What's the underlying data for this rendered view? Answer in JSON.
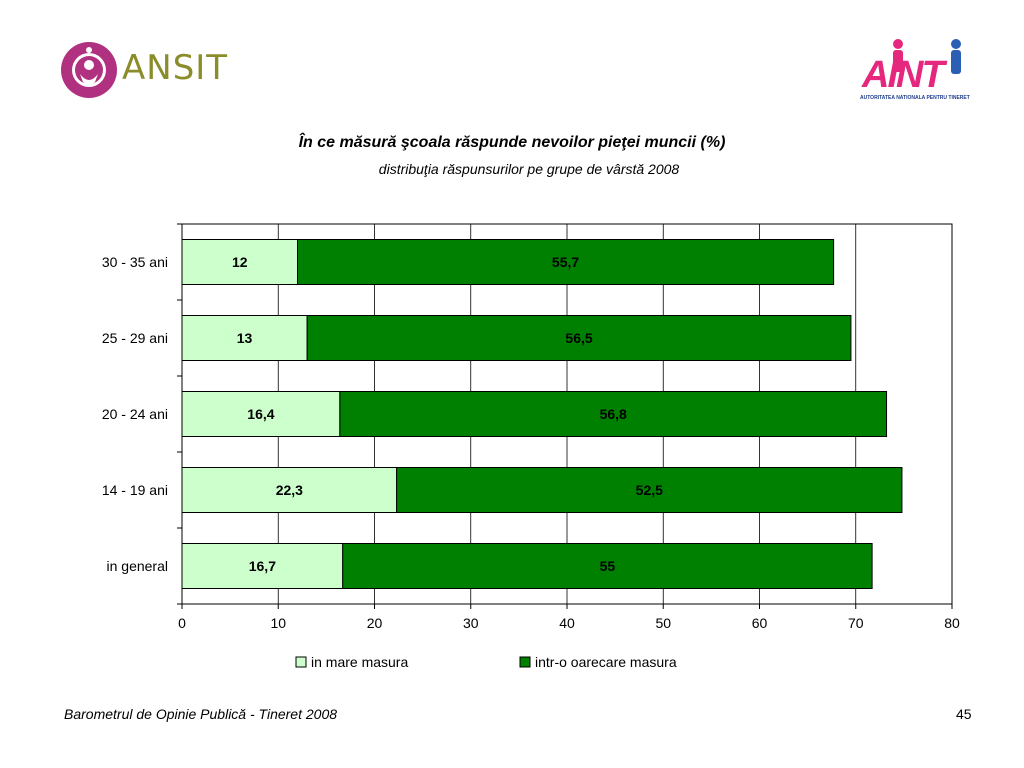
{
  "logos": {
    "left_text": "ANSIT",
    "right_text": "AINT",
    "right_subtext": "AUTORITATEA NATIONALA PENTRU TINERET"
  },
  "colors": {
    "series1": "#ccffcc",
    "series2": "#008000",
    "logo_magenta": "#b0317f",
    "logo_olive": "#8a8d2a"
  },
  "chart_data": {
    "type": "bar",
    "orientation": "horizontal",
    "stacked": true,
    "title": "În ce măsură şcoala răspunde nevoilor pieţei muncii (%)",
    "subtitle": "distribuţia răspunsurilor pe grupe de vârstă 2008",
    "categories": [
      "30 - 35 ani",
      "25 - 29 ani",
      "20 - 24 ani",
      "14 - 19 ani",
      "in general"
    ],
    "series": [
      {
        "name": "in mare masura",
        "values": [
          12,
          13,
          16.4,
          22.3,
          16.7
        ],
        "labels": [
          "12",
          "13",
          "16,4",
          "22,3",
          "16,7"
        ]
      },
      {
        "name": "intr-o oarecare masura",
        "values": [
          55.7,
          56.5,
          56.8,
          52.5,
          55
        ],
        "labels": [
          "55,7",
          "56,5",
          "56,8",
          "52,5",
          "55"
        ]
      }
    ],
    "xlim": [
      0,
      80
    ],
    "xticks": [
      0,
      10,
      20,
      30,
      40,
      50,
      60,
      70,
      80
    ],
    "grid": true,
    "legend": "bottom"
  },
  "footer": {
    "source": "Barometrul de Opinie Publică - Tineret 2008",
    "page": "45"
  }
}
